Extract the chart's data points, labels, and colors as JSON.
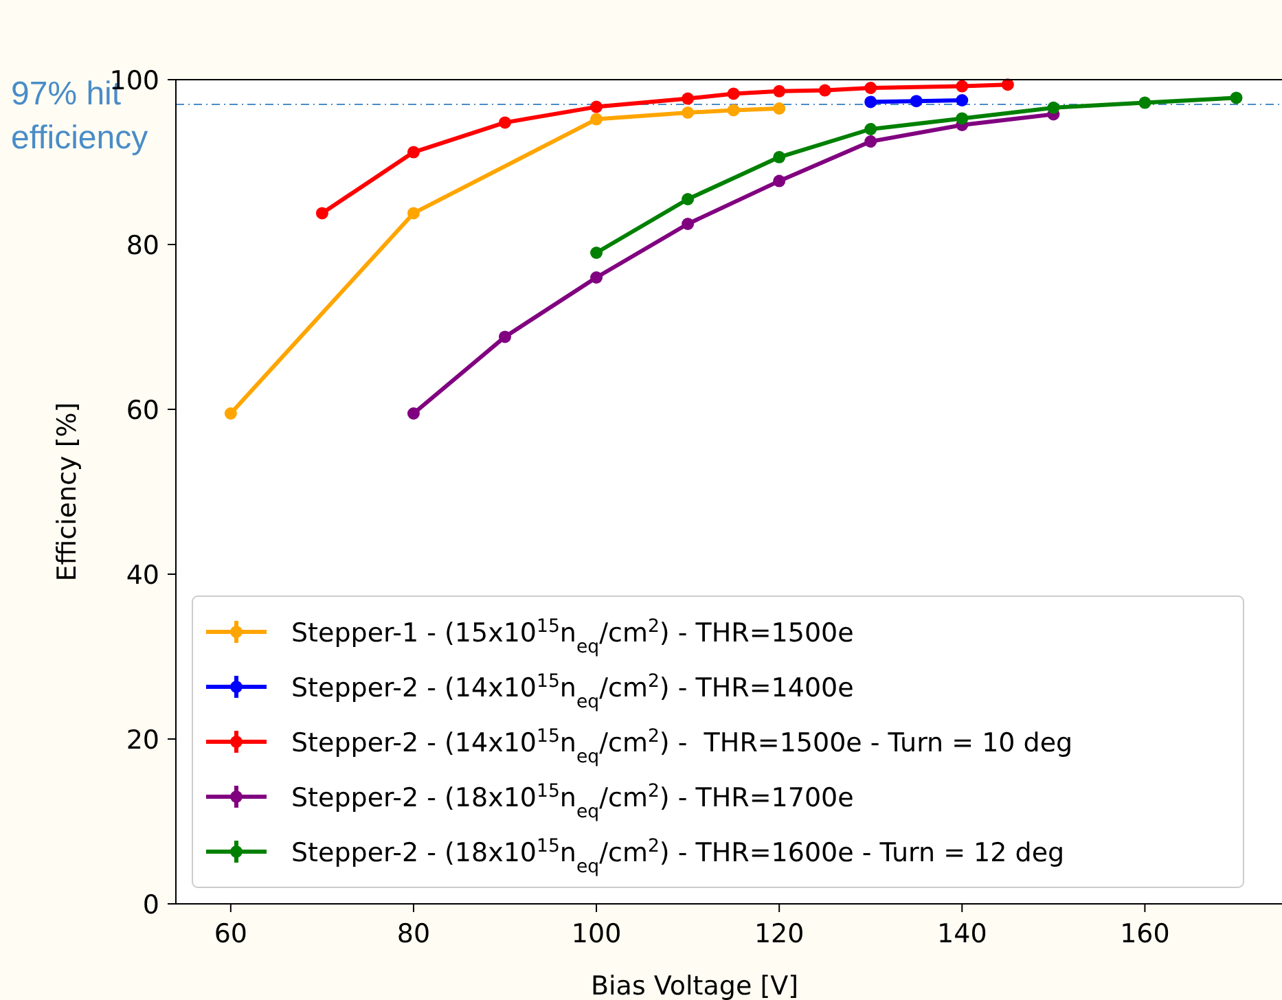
{
  "chart_data": {
    "type": "line",
    "xlabel": "Bias Voltage [V]",
    "ylabel": "Efficiency [%]",
    "xlim": [
      54,
      175
    ],
    "ylim": [
      0,
      100
    ],
    "xticks": [
      60,
      80,
      100,
      120,
      140,
      160
    ],
    "yticks": [
      0,
      20,
      40,
      60,
      80,
      100
    ],
    "grid": false,
    "legend": "bottom",
    "marker": "circle",
    "line_style": "solid",
    "ref_lines": [
      {
        "axis": "y",
        "value": 97,
        "label": "97% hit efficiency",
        "color": "#4a8cc8",
        "line_style": "dashdot"
      }
    ],
    "series": [
      {
        "name": "Stepper-1 - (15x10$^{15}$n$_{eq}$/cm$^{2}$) - THR=1500e",
        "color": "#ffa500",
        "x": [
          60,
          80,
          100,
          110,
          115,
          120
        ],
        "values": [
          59.5,
          83.8,
          95.2,
          96.0,
          96.3,
          96.5
        ]
      },
      {
        "name": "Stepper-2 - (14x10$^{15}$n$_{eq}$/cm$^{2}$) - THR=1400e",
        "color": "#0000ff",
        "x": [
          130,
          135,
          140
        ],
        "values": [
          97.3,
          97.4,
          97.5
        ]
      },
      {
        "name": "Stepper-2 - (14x10$^{15}$n$_{eq}$/cm$^{2}$) -  THR=1500e - Turn = 10 deg",
        "color": "#ff0000",
        "x": [
          70,
          80,
          90,
          100,
          110,
          115,
          120,
          125,
          130,
          140,
          145
        ],
        "values": [
          83.8,
          91.2,
          94.8,
          96.7,
          97.7,
          98.3,
          98.6,
          98.7,
          99.0,
          99.2,
          99.4
        ]
      },
      {
        "name": "Stepper-2 - (18x10$^{15}$n$_{eq}$/cm$^{2}$) - THR=1700e",
        "color": "#800080",
        "x": [
          80,
          90,
          100,
          110,
          120,
          130,
          140,
          150
        ],
        "values": [
          59.5,
          68.8,
          76.0,
          82.5,
          87.7,
          92.5,
          94.5,
          95.8
        ]
      },
      {
        "name": "Stepper-2 - (18x10$^{15}$n$_{eq}$/cm$^{2}$) - THR=1600e - Turn = 12 deg",
        "color": "#008000",
        "x": [
          100,
          110,
          120,
          130,
          140,
          150,
          160,
          170
        ],
        "values": [
          79.0,
          85.5,
          90.6,
          94.0,
          95.3,
          96.6,
          97.2,
          97.8
        ]
      }
    ]
  }
}
